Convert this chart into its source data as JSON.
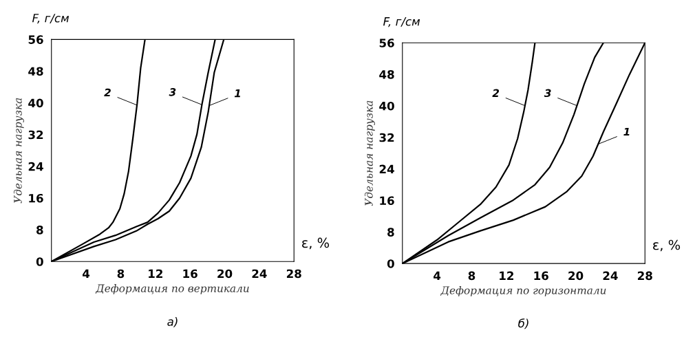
{
  "chart_data": [
    {
      "type": "line",
      "title": "F, г/см",
      "xlabel": "Деформация по вертикали",
      "ylabel": "Удельная нагрузка",
      "xlim": [
        0,
        28
      ],
      "ylim": [
        0,
        56
      ],
      "xticks": [
        4,
        8,
        12,
        16,
        20,
        24,
        28
      ],
      "yticks": [
        0,
        8,
        16,
        24,
        32,
        40,
        48,
        56
      ],
      "grid": false,
      "legend": false,
      "marker": "none",
      "line_style": "solid",
      "series": [
        {
          "color": "#000000",
          "x": [
            0,
            3.6,
            5.6,
            6.6,
            7.1,
            7.9,
            8.4,
            8.9,
            9.4,
            9.9,
            10.3,
            10.8
          ],
          "values": [
            0,
            4.4,
            6.9,
            8.5,
            9.9,
            13.3,
            17.1,
            22.7,
            31,
            39.9,
            48.8,
            56
          ]
        },
        {
          "color": "#000000",
          "x": [
            0,
            4.9,
            7.4,
            9.8,
            11.1,
            12.3,
            13.6,
            14.8,
            16.1,
            16.8,
            17.4,
            18.1,
            18.9
          ],
          "values": [
            0,
            4.9,
            6.6,
            8.8,
            9.9,
            12.2,
            15.5,
            19.9,
            26.6,
            32.1,
            39.9,
            47.7,
            56
          ]
        },
        {
          "color": "#000000",
          "x": [
            0,
            4.9,
            7.4,
            9.8,
            11.1,
            12.3,
            13.6,
            14.8,
            16.1,
            17.3,
            18.1,
            18.8,
            19.9
          ],
          "values": [
            0,
            3.8,
            5.5,
            7.7,
            9.4,
            10.8,
            12.7,
            16,
            21,
            28.8,
            37.7,
            47.7,
            56
          ]
        }
      ],
      "annotations": [
        "ε, %",
        "а)",
        {
          "text": "2",
          "x": 9.8,
          "y": 39.5
        },
        {
          "text": "3",
          "x": 17.3,
          "y": 39.6
        },
        {
          "text": "1",
          "x": 18.2,
          "y": 39.3
        }
      ]
    },
    {
      "type": "line",
      "title": "F, г/см",
      "xlabel": "Деформация по горизонтали",
      "ylabel": "Удельная нагрузка",
      "xlim": [
        0,
        28
      ],
      "ylim": [
        0,
        56
      ],
      "xticks": [
        4,
        8,
        12,
        16,
        20,
        24,
        28
      ],
      "yticks": [
        0,
        8,
        16,
        24,
        32,
        40,
        48,
        56
      ],
      "grid": false,
      "legend": false,
      "marker": "none",
      "line_style": "solid",
      "series": [
        {
          "color": "#000000",
          "x": [
            0,
            4,
            6.5,
            9,
            10.8,
            12.3,
            13.3,
            14,
            14.5,
            15,
            15.3
          ],
          "values": [
            0,
            6,
            10.5,
            15,
            19.4,
            25,
            31.7,
            38.4,
            44,
            51.2,
            56
          ]
        },
        {
          "color": "#000000",
          "x": [
            0,
            5.3,
            9,
            12.8,
            15.3,
            17,
            18.5,
            19.8,
            21,
            22.2,
            23.2
          ],
          "values": [
            0,
            7.1,
            11.6,
            16.1,
            20,
            24.4,
            30.6,
            37.8,
            45.6,
            52.3,
            56
          ]
        },
        {
          "color": "#000000",
          "x": [
            0,
            5.3,
            9,
            12.8,
            16.5,
            19,
            20.7,
            22,
            23.2,
            24.7,
            26.2,
            28
          ],
          "values": [
            0,
            5.5,
            8.3,
            11,
            14.4,
            18.3,
            22.2,
            27.2,
            33.4,
            40.6,
            47.9,
            56
          ]
        }
      ],
      "annotations": [
        "ε, %",
        "б)",
        {
          "text": "2",
          "x": 14.1,
          "y": 40.1
        },
        {
          "text": "3",
          "x": 20.1,
          "y": 40.1
        },
        {
          "text": "1",
          "x": 22.6,
          "y": 30.3
        }
      ]
    }
  ]
}
